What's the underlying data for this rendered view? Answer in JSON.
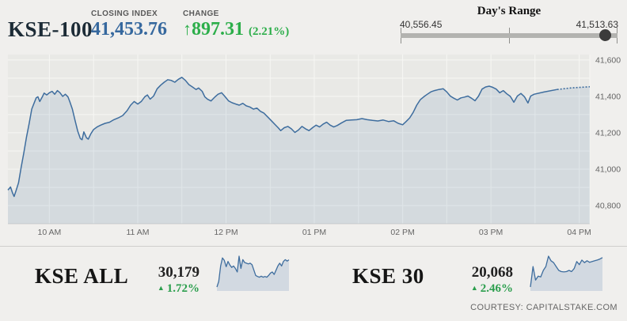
{
  "header": {
    "index_name": "KSE-100",
    "closing": {
      "label": "CLOSING INDEX",
      "value": "41,453.76"
    },
    "change": {
      "label": "CHANGE",
      "arrow": "↑",
      "value": "897.31",
      "percent": "(2.21%)"
    },
    "days_range": {
      "title": "Day's Range",
      "low": "40,556.45",
      "high": "41,513.63",
      "knob_fraction": 0.937
    }
  },
  "bottom": {
    "kse_all": {
      "label": "KSE ALL",
      "value": "30,179",
      "arrow": "▲",
      "percent": "1.72%"
    },
    "kse_30": {
      "label": "KSE 30",
      "value": "20,068",
      "arrow": "▲",
      "percent": "2.46%"
    },
    "courtesy": "COURTESY: CAPITALSTAKE.COM"
  },
  "colors": {
    "page_bg": "#f0efed",
    "plot_bg": "#e9e9e6",
    "gridline": "#f7f7f4",
    "axis_line": "#d2d2cf",
    "line_blue": "#3e6d9e",
    "area_fill": "rgba(105,140,180,0.16)",
    "value_blue": "#36689e",
    "gain_green": "#2cae4a",
    "tick_text": "#666666"
  },
  "chart_data": [
    {
      "id": "kse100_intraday",
      "type": "area",
      "title": "KSE-100 intraday index",
      "x_unit": "hour_of_day",
      "xlim": [
        9.53,
        16.12
      ],
      "ylim": [
        40700,
        41630
      ],
      "grid": true,
      "y_ticks": [
        {
          "value": 41600,
          "label": "41,600"
        },
        {
          "value": 41400,
          "label": "41,400"
        },
        {
          "value": 41200,
          "label": "41,200"
        },
        {
          "value": 41000,
          "label": "41,000"
        },
        {
          "value": 40800,
          "label": "40,800"
        }
      ],
      "y_minor_step": 100,
      "x_minor_step": 0.5,
      "x_ticks": [
        {
          "value": 10,
          "label": "10 AM"
        },
        {
          "value": 11,
          "label": "11 AM"
        },
        {
          "value": 12,
          "label": "12 PM"
        },
        {
          "value": 13,
          "label": "01 PM"
        },
        {
          "value": 14,
          "label": "02 PM"
        },
        {
          "value": 15,
          "label": "03 PM"
        },
        {
          "value": 16,
          "label": "04 PM"
        }
      ],
      "dash_from": 15.72,
      "points": [
        [
          9.53,
          40885
        ],
        [
          9.56,
          40902
        ],
        [
          9.58,
          40872
        ],
        [
          9.6,
          40850
        ],
        [
          9.62,
          40878
        ],
        [
          9.65,
          40925
        ],
        [
          9.68,
          41010
        ],
        [
          9.71,
          41090
        ],
        [
          9.74,
          41175
        ],
        [
          9.77,
          41250
        ],
        [
          9.8,
          41330
        ],
        [
          9.83,
          41368
        ],
        [
          9.85,
          41392
        ],
        [
          9.87,
          41398
        ],
        [
          9.89,
          41372
        ],
        [
          9.92,
          41398
        ],
        [
          9.94,
          41418
        ],
        [
          9.97,
          41408
        ],
        [
          10.0,
          41420
        ],
        [
          10.03,
          41428
        ],
        [
          10.06,
          41412
        ],
        [
          10.09,
          41432
        ],
        [
          10.12,
          41420
        ],
        [
          10.15,
          41400
        ],
        [
          10.18,
          41412
        ],
        [
          10.21,
          41398
        ],
        [
          10.23,
          41372
        ],
        [
          10.26,
          41330
        ],
        [
          10.29,
          41268
        ],
        [
          10.32,
          41210
        ],
        [
          10.35,
          41168
        ],
        [
          10.37,
          41162
        ],
        [
          10.39,
          41205
        ],
        [
          10.42,
          41172
        ],
        [
          10.44,
          41165
        ],
        [
          10.47,
          41195
        ],
        [
          10.5,
          41218
        ],
        [
          10.54,
          41232
        ],
        [
          10.58,
          41242
        ],
        [
          10.63,
          41252
        ],
        [
          10.68,
          41258
        ],
        [
          10.73,
          41272
        ],
        [
          10.78,
          41282
        ],
        [
          10.83,
          41295
        ],
        [
          10.88,
          41322
        ],
        [
          10.92,
          41352
        ],
        [
          10.96,
          41372
        ],
        [
          11.0,
          41358
        ],
        [
          11.04,
          41372
        ],
        [
          11.08,
          41398
        ],
        [
          11.11,
          41408
        ],
        [
          11.14,
          41385
        ],
        [
          11.18,
          41402
        ],
        [
          11.22,
          41442
        ],
        [
          11.26,
          41462
        ],
        [
          11.3,
          41478
        ],
        [
          11.34,
          41492
        ],
        [
          11.38,
          41488
        ],
        [
          11.42,
          41478
        ],
        [
          11.46,
          41494
        ],
        [
          11.5,
          41505
        ],
        [
          11.54,
          41488
        ],
        [
          11.58,
          41465
        ],
        [
          11.62,
          41452
        ],
        [
          11.66,
          41438
        ],
        [
          11.69,
          41446
        ],
        [
          11.73,
          41428
        ],
        [
          11.76,
          41398
        ],
        [
          11.79,
          41385
        ],
        [
          11.83,
          41375
        ],
        [
          11.87,
          41395
        ],
        [
          11.91,
          41412
        ],
        [
          11.95,
          41420
        ],
        [
          11.99,
          41398
        ],
        [
          12.03,
          41375
        ],
        [
          12.07,
          41365
        ],
        [
          12.11,
          41358
        ],
        [
          12.15,
          41352
        ],
        [
          12.19,
          41362
        ],
        [
          12.23,
          41348
        ],
        [
          12.27,
          41342
        ],
        [
          12.31,
          41330
        ],
        [
          12.35,
          41336
        ],
        [
          12.39,
          41318
        ],
        [
          12.43,
          41308
        ],
        [
          12.47,
          41288
        ],
        [
          12.51,
          41268
        ],
        [
          12.55,
          41248
        ],
        [
          12.59,
          41228
        ],
        [
          12.62,
          41212
        ],
        [
          12.66,
          41228
        ],
        [
          12.7,
          41235
        ],
        [
          12.74,
          41222
        ],
        [
          12.78,
          41202
        ],
        [
          12.82,
          41215
        ],
        [
          12.86,
          41235
        ],
        [
          12.9,
          41222
        ],
        [
          12.94,
          41212
        ],
        [
          12.98,
          41228
        ],
        [
          13.02,
          41242
        ],
        [
          13.06,
          41232
        ],
        [
          13.1,
          41248
        ],
        [
          13.14,
          41258
        ],
        [
          13.18,
          41242
        ],
        [
          13.22,
          41232
        ],
        [
          13.26,
          41240
        ],
        [
          13.31,
          41255
        ],
        [
          13.36,
          41268
        ],
        [
          13.42,
          41270
        ],
        [
          13.48,
          41272
        ],
        [
          13.54,
          41278
        ],
        [
          13.6,
          41272
        ],
        [
          13.66,
          41268
        ],
        [
          13.72,
          41265
        ],
        [
          13.78,
          41270
        ],
        [
          13.84,
          41262
        ],
        [
          13.9,
          41266
        ],
        [
          13.95,
          41252
        ],
        [
          14.0,
          41244
        ],
        [
          14.04,
          41262
        ],
        [
          14.08,
          41282
        ],
        [
          14.12,
          41312
        ],
        [
          14.16,
          41352
        ],
        [
          14.2,
          41382
        ],
        [
          14.24,
          41398
        ],
        [
          14.28,
          41412
        ],
        [
          14.32,
          41425
        ],
        [
          14.36,
          41432
        ],
        [
          14.41,
          41438
        ],
        [
          14.46,
          41442
        ],
        [
          14.5,
          41425
        ],
        [
          14.54,
          41402
        ],
        [
          14.58,
          41390
        ],
        [
          14.62,
          41380
        ],
        [
          14.66,
          41392
        ],
        [
          14.7,
          41396
        ],
        [
          14.74,
          41402
        ],
        [
          14.78,
          41390
        ],
        [
          14.82,
          41376
        ],
        [
          14.86,
          41402
        ],
        [
          14.9,
          41440
        ],
        [
          14.94,
          41452
        ],
        [
          14.98,
          41456
        ],
        [
          15.02,
          41450
        ],
        [
          15.06,
          41440
        ],
        [
          15.1,
          41420
        ],
        [
          15.14,
          41432
        ],
        [
          15.18,
          41414
        ],
        [
          15.22,
          41400
        ],
        [
          15.26,
          41368
        ],
        [
          15.3,
          41402
        ],
        [
          15.34,
          41416
        ],
        [
          15.38,
          41398
        ],
        [
          15.42,
          41364
        ],
        [
          15.45,
          41402
        ],
        [
          15.49,
          41412
        ],
        [
          15.6,
          41424
        ],
        [
          15.75,
          41438
        ],
        [
          15.9,
          41446
        ],
        [
          16.12,
          41453
        ]
      ]
    },
    {
      "id": "kse_all_spark",
      "type": "area",
      "title": "KSE ALL sparkline",
      "last_value": 30179,
      "values": [
        29683,
        29785,
        30067,
        30214,
        30169,
        30054,
        30150,
        30086,
        30041,
        30067,
        30022,
        29958,
        30246,
        30022,
        30182,
        30131,
        30118,
        30105,
        30118,
        30092,
        29990,
        29894,
        29875,
        29862,
        29881,
        29862,
        29875,
        29862,
        29894,
        29939,
        29958,
        29913,
        29990,
        30067,
        30118,
        30067,
        30150,
        30182,
        30156,
        30179
      ]
    },
    {
      "id": "kse_30_spark",
      "type": "area",
      "title": "KSE 30 sparkline",
      "last_value": 20068,
      "values": [
        19602,
        19926,
        19712,
        19773,
        19761,
        19865,
        19926,
        20090,
        20017,
        19987,
        19926,
        19865,
        19846,
        19841,
        19846,
        19865,
        19846,
        19895,
        20005,
        19956,
        20029,
        19987,
        20017,
        19993,
        20005,
        20017,
        20029,
        20045,
        20068
      ]
    }
  ]
}
